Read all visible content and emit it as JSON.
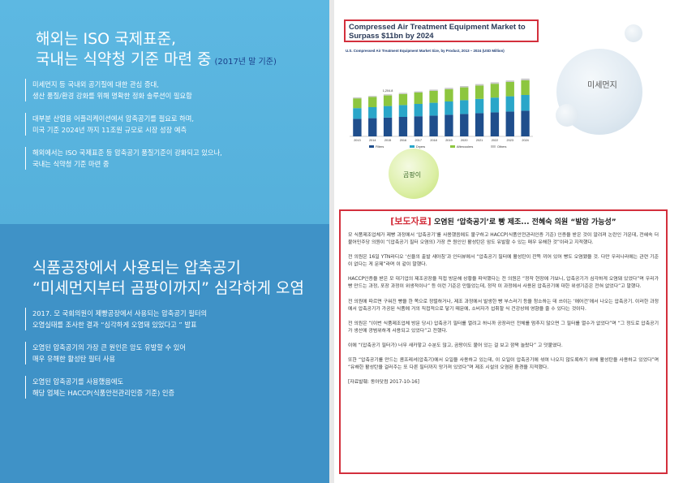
{
  "left_top": {
    "title_line1": "해외는 ISO 국제표준,",
    "title_line2": "국내는 식약청 기준 마련 중",
    "title_sub": "(2017년 말 기준)",
    "bullets": [
      {
        "line1": "미세먼지 등 국내외 공기질에 대한 관심 증대,",
        "line2": "생산 품질/환경 강화를 위해 명확한 정화 솔루션이 필요함"
      },
      {
        "line1": "대부분 산업용 어플리케이션에서 압축공기를 필요로 하며,",
        "line2": "미국 기준 2024년 까지 11조원 규모로 시장 성장 예측"
      },
      {
        "line1": "해외에서는 ISO 국제표준 등 압축공기 품질기준이 강화되고 있으나,",
        "line2": "국내는 식약청 기준 마련 중"
      }
    ]
  },
  "left_bottom": {
    "title_line1": "식품공장에서 사용되는 압축공기",
    "title_line2": "“미세먼지부터 곰팡이까지” 심각하게 오염",
    "bullets": [
      {
        "line1": "2017. 모 국회의원이 제빵공장에서 사용되는 압축공기 필터의",
        "line2": "오염실태를 조사한 결과 “심각하게 오염돼 있었다고 ” 발표"
      },
      {
        "line1": "오염된 압축공기의 가장 큰 원인은 암도 유발할 수 있어",
        "line2": "매우 유해한 활성탄 필터 사용"
      },
      {
        "line1": "오염된 압축공기를 사용했음에도",
        "line2": "해당 업체는 HACCP(식품안전관리인증 기준) 인증"
      }
    ]
  },
  "chart_header": {
    "title_line1": "Compressed Air Treatment Equipment Market to",
    "title_line2": "Surpass $11bn by 2024",
    "subtitle": "U.S. Compressed Air Treatment Equipment Market Size, by Product, 2013 – 2024 (USD Million)"
  },
  "chart_data": {
    "type": "bar",
    "stacked": true,
    "title": "U.S. Compressed Air Treatment Equipment Market Size, by Product, 2013 – 2024 (USD Million)",
    "categories": [
      "2013",
      "2014",
      "2015",
      "2016",
      "2017",
      "2018",
      "2019",
      "2020",
      "2021",
      "2022",
      "2023",
      "2024"
    ],
    "series": [
      {
        "name": "Filters",
        "color": "#1f4e8c",
        "values": [
          540,
          560,
          580,
          600,
          620,
          640,
          665,
          690,
          715,
          740,
          765,
          790
        ]
      },
      {
        "name": "Dryers",
        "color": "#2aa6c9",
        "values": [
          330,
          340,
          355,
          365,
          380,
          395,
          410,
          425,
          440,
          455,
          470,
          485
        ]
      },
      {
        "name": "Aftercoolers",
        "color": "#8dc63f",
        "values": [
          300,
          315,
          325,
          340,
          350,
          365,
          380,
          395,
          410,
          425,
          440,
          455
        ]
      },
      {
        "name": "Others",
        "color": "#c8c8c8",
        "values": [
          30,
          30,
          35,
          35,
          35,
          40,
          40,
          40,
          45,
          45,
          45,
          50
        ]
      }
    ],
    "annotation": "1,204.8",
    "legend_position": "bottom",
    "ylim": [
      0,
      2000
    ]
  },
  "circles": {
    "dust_label": "미세먼지",
    "mold_label": "곰팡이"
  },
  "press": {
    "tag": "[보도자료]",
    "headline": "오염된 ‘압축공기’로 빵 제조... 전혜숙 의원 “발암 가능성”",
    "paragraphs": [
      "모 식품제조업체가 제빵 과정에서 ‘압축공기’를 사용했음에도 불구하고 HACCP(식품안전관리인증 기준) 인증을 받은 것이 알려져 논란인 가운데, 전혜숙 더불어민주당 의원이 “(압축공기 필터 오염의) 가장 큰 원인인 활성탄은 암도 유발할 수 있는 매우 유해한 것”이라고 지적했다.",
      "전 의원은 16일 YTN라디오 ‘신율의 출발 새아침’과 인터뷰에서 “압축공기 필터에 활성탄이 잔뜩 끼어 있어 빵도 오염됐을 것. 다만 우리나라에는 관련 기준이 없다는 게 문제”라며 이 같이 말했다.",
      "HACCP인증을 받은 모 대기업의 제조공장을 직접 방문해 상황을 파악했다는 전 의원은 “정작 현장에 가보니, 압축공기가 심각하게 오염돼 있었다”며 우리가 빵 만드는 과정, 포장 과정이 위생적이나” 등 이런 기준은 만들었는데, 정작 이 과정에서 사용된 압축공기에 대한 위생기준은 전혀 없었다”고 말했다.",
      "전 의원에 따르면 구워진 빵을 한 쪽으로 정렬하거나, 제조 과정에서 발생한 빵 부스러기 등을 청소하는 데 쓰이는 ‘에어건’에서 나오는 압축공기. 이러한 과정에서 압축공기가 가공된 식품에 거의 직접적으로 닿기 때문에, 소비자가 섭취할 식 건강상에 영향을 줄 수 있다는 것이다.",
      "전 의원은 “(이번 식품제조업체 방문 당시) 압축공기 필터를 열려고 하니까 공장라인 전체를 멈추지 않으면 그 필터를 열수가 없었다”며 “그 정도로 압축공기가 생산에 광범위하게 사용되고 있었다”고 전했다.",
      "이에 “(압축공기 필터가) 너무 새카맣고 수분도 많고, 곰팡이도 붙어 있는 걸 보고 깜짝 놀랐다” 고 덧붙였다.",
      "또한 “압축공기를 만드는 콤프레셔(압축기)에서 오일을 사용하고 있는데, 이 오일이 압축공기에 섞여 나오지 않도록하기 위해 활성탄을 사용하고 있었다”며 “유해한 활성탄을 걸러주는 또 다른 필터까지 망가져 있었다”며 제조 시설의 오염된 환경을 지적했다."
    ],
    "source": "[자료발췌: 동아닷컴 2017-10-16]"
  }
}
